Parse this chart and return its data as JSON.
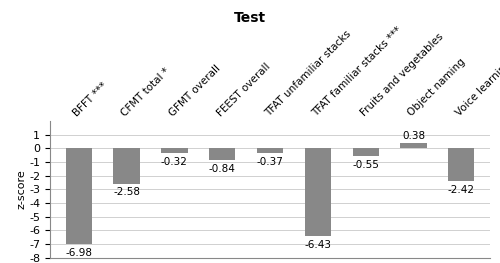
{
  "categories": [
    "BFFT ***",
    "CFMT total *",
    "GFMT overall",
    "FEEST overall",
    "TFAT unfamiliar stacks",
    "TFAT familiar stacks ***",
    "Fruits and vegetables",
    "Object naming",
    "Voice learning d’ *"
  ],
  "values": [
    -6.98,
    -2.58,
    -0.32,
    -0.84,
    -0.37,
    -6.43,
    -0.55,
    0.38,
    -2.42
  ],
  "bar_color": "#888888",
  "title": "Test",
  "ylabel": "z-score",
  "ylim": [
    -8,
    2
  ],
  "yticks": [
    -8,
    -7,
    -6,
    -5,
    -4,
    -3,
    -2,
    -1,
    0,
    1
  ],
  "background_color": "#ffffff",
  "grid_color": "#d0d0d0",
  "label_fontsize": 7.5,
  "value_fontsize": 7.5,
  "title_fontsize": 10
}
